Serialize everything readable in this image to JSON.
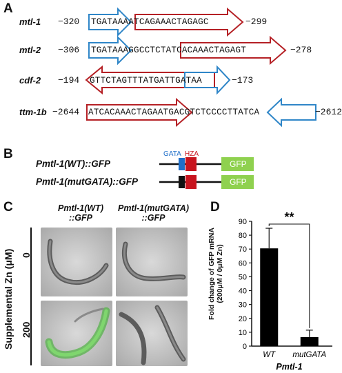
{
  "panel_a": {
    "letter": "A",
    "rows": [
      {
        "gene": "mtl-1",
        "left_coord": "−320",
        "sequence": "TGATAAAATCAGAAACTAGAGC",
        "right_coord": "−299"
      },
      {
        "gene": "mtl-2",
        "left_coord": "−306",
        "sequence": "TGATAAAGGCCTCTATCACAAACTAGAGT",
        "right_coord": "−278"
      },
      {
        "gene": "cdf-2",
        "left_coord": "−194",
        "sequence": "GTTCTAGTTTATGATTGATAA",
        "right_coord": "−173"
      },
      {
        "gene": "ttm-1b",
        "left_coord": "−2644",
        "sequence": "ATCACAAACTAGAATGACGTCTCCCCTTATCA",
        "right_coord": "−2612"
      }
    ]
  },
  "panel_b": {
    "letter": "B",
    "constructs": [
      {
        "label": "Pmtl-1(WT)::GFP",
        "gata_color": "#1f6fc9"
      },
      {
        "label": "Pmtl-1(mutGATA)::GFP",
        "gata_color": "#111111"
      }
    ],
    "gata_label": "GATA",
    "hza_label": "HZA",
    "gfp_label": "GFP",
    "colors": {
      "gata": "#1f6fc9",
      "hza": "#c8141e",
      "gfp": "#8fd14f",
      "mut": "#111111"
    }
  },
  "panel_c": {
    "letter": "C",
    "col_labels": [
      {
        "line1": "Pmtl-1(WT)",
        "line2": "::GFP"
      },
      {
        "line1": "Pmtl-1(mutGATA)",
        "line2": "::GFP"
      }
    ],
    "row_axis_label": "Supplemental Zn (μM)",
    "row_labels": [
      "0",
      "200"
    ]
  },
  "panel_d": {
    "letter": "D",
    "significance": "**",
    "xgroup_label": "Pmtl-1"
  },
  "chart_data": {
    "type": "bar",
    "categories": [
      "WT",
      "mutGATA"
    ],
    "values": [
      70.5,
      6.5
    ],
    "errors": [
      14.5,
      5.0
    ],
    "ylabel": "Fold change of GFP mRNA (200μM / 0μM Zn)",
    "xlabel": "Pmtl-1",
    "ylim": [
      0,
      90
    ],
    "yticks": [
      0,
      10,
      20,
      30,
      40,
      50,
      60,
      70,
      80,
      90
    ],
    "bar_color": "#000000",
    "grid": false
  }
}
